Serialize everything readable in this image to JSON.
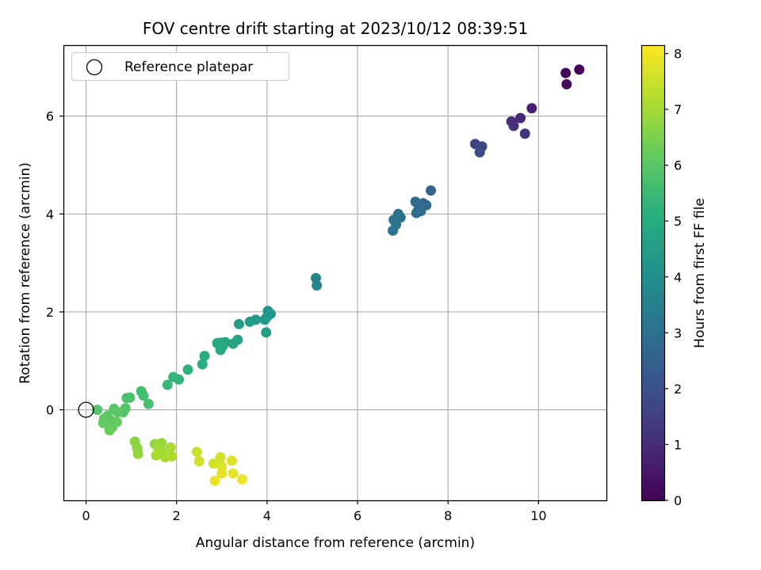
{
  "chart_data": {
    "type": "scatter",
    "title": "FOV centre drift starting at 2023/10/12 08:39:51",
    "xlabel": "Angular distance from reference (arcmin)",
    "ylabel": "Rotation from reference (arcmin)",
    "xlim": [
      -0.5,
      11.5
    ],
    "ylim": [
      -1.85,
      7.45
    ],
    "xticks": [
      "0",
      "2",
      "4",
      "6",
      "8",
      "10"
    ],
    "yticks": [
      "0",
      "2",
      "4",
      "6"
    ],
    "grid": true,
    "colormap": "viridis",
    "colorbar": {
      "label": "Hours from first FF file",
      "range": [
        0,
        8.15
      ],
      "ticks": [
        "0",
        "1",
        "2",
        "3",
        "4",
        "5",
        "6",
        "7",
        "8"
      ]
    },
    "legend": {
      "placement": "top-left",
      "entries": [
        "Reference platepar"
      ]
    },
    "reference_point": {
      "x": 0,
      "y": 0,
      "label": "Reference platepar"
    },
    "point_fields": [
      "x",
      "y",
      "hours"
    ],
    "points": [
      [
        10.9,
        6.95,
        0.05
      ],
      [
        10.6,
        6.88,
        0.15
      ],
      [
        10.62,
        6.65,
        0.25
      ],
      [
        9.85,
        6.16,
        0.75
      ],
      [
        9.6,
        5.96,
        0.9
      ],
      [
        9.4,
        5.89,
        1.0
      ],
      [
        9.45,
        5.8,
        1.1
      ],
      [
        9.7,
        5.64,
        1.2
      ],
      [
        8.6,
        5.43,
        1.6
      ],
      [
        8.75,
        5.38,
        1.7
      ],
      [
        8.7,
        5.26,
        1.8
      ],
      [
        7.62,
        4.48,
        2.6
      ],
      [
        7.45,
        4.22,
        2.7
      ],
      [
        7.52,
        4.18,
        2.75
      ],
      [
        7.28,
        4.25,
        2.8
      ],
      [
        7.35,
        4.1,
        2.85
      ],
      [
        7.3,
        4.02,
        2.9
      ],
      [
        7.4,
        4.06,
        2.95
      ],
      [
        6.9,
        4.0,
        3.0
      ],
      [
        6.95,
        3.93,
        3.05
      ],
      [
        6.8,
        3.88,
        3.1
      ],
      [
        6.85,
        3.78,
        3.15
      ],
      [
        6.78,
        3.66,
        3.2
      ],
      [
        5.08,
        2.69,
        3.6
      ],
      [
        5.1,
        2.54,
        3.7
      ],
      [
        4.02,
        2.02,
        4.2
      ],
      [
        4.08,
        1.96,
        4.25
      ],
      [
        4.0,
        1.9,
        4.3
      ],
      [
        3.95,
        1.84,
        4.35
      ],
      [
        3.75,
        1.84,
        4.4
      ],
      [
        3.62,
        1.8,
        4.45
      ],
      [
        3.38,
        1.75,
        4.5
      ],
      [
        3.98,
        1.58,
        4.55
      ],
      [
        3.35,
        1.43,
        4.65
      ],
      [
        3.25,
        1.35,
        4.7
      ],
      [
        3.08,
        1.38,
        4.75
      ],
      [
        2.97,
        1.37,
        4.8
      ],
      [
        2.9,
        1.36,
        4.85
      ],
      [
        3.02,
        1.3,
        4.9
      ],
      [
        2.97,
        1.22,
        4.95
      ],
      [
        2.62,
        1.1,
        5.05
      ],
      [
        2.57,
        0.93,
        5.1
      ],
      [
        2.25,
        0.82,
        5.2
      ],
      [
        2.05,
        0.62,
        5.3
      ],
      [
        1.93,
        0.67,
        5.35
      ],
      [
        1.8,
        0.51,
        5.4
      ],
      [
        1.22,
        0.38,
        5.6
      ],
      [
        1.27,
        0.29,
        5.65
      ],
      [
        1.38,
        0.12,
        5.7
      ],
      [
        0.97,
        0.25,
        5.75
      ],
      [
        0.9,
        0.24,
        5.8
      ],
      [
        0.87,
        0.03,
        5.85
      ],
      [
        0.82,
        -0.05,
        5.9
      ],
      [
        0.25,
        0.0,
        5.95
      ],
      [
        0.62,
        0.02,
        6.0
      ],
      [
        0.7,
        -0.05,
        6.0
      ],
      [
        0.48,
        -0.12,
        6.05
      ],
      [
        0.4,
        -0.18,
        6.1
      ],
      [
        0.55,
        -0.22,
        6.1
      ],
      [
        0.68,
        -0.25,
        6.15
      ],
      [
        0.38,
        -0.27,
        6.15
      ],
      [
        0.58,
        -0.35,
        6.2
      ],
      [
        0.52,
        -0.42,
        6.25
      ],
      [
        1.08,
        -0.65,
        6.7
      ],
      [
        1.13,
        -0.78,
        6.75
      ],
      [
        1.15,
        -0.9,
        6.8
      ],
      [
        1.52,
        -0.7,
        6.85
      ],
      [
        1.67,
        -0.68,
        6.9
      ],
      [
        1.6,
        -0.8,
        6.95
      ],
      [
        1.7,
        -0.87,
        7.0
      ],
      [
        1.55,
        -0.93,
        7.05
      ],
      [
        1.75,
        -0.97,
        7.1
      ],
      [
        1.87,
        -0.77,
        7.1
      ],
      [
        1.9,
        -0.95,
        7.15
      ],
      [
        2.45,
        -0.86,
        7.5
      ],
      [
        2.5,
        -1.05,
        7.55
      ],
      [
        2.97,
        -0.97,
        7.6
      ],
      [
        2.82,
        -1.1,
        7.65
      ],
      [
        3.0,
        -1.16,
        7.7
      ],
      [
        3.22,
        -1.04,
        7.75
      ],
      [
        3.0,
        -1.3,
        7.8
      ],
      [
        3.25,
        -1.3,
        7.85
      ],
      [
        2.85,
        -1.45,
        7.9
      ],
      [
        3.45,
        -1.42,
        7.95
      ]
    ]
  }
}
